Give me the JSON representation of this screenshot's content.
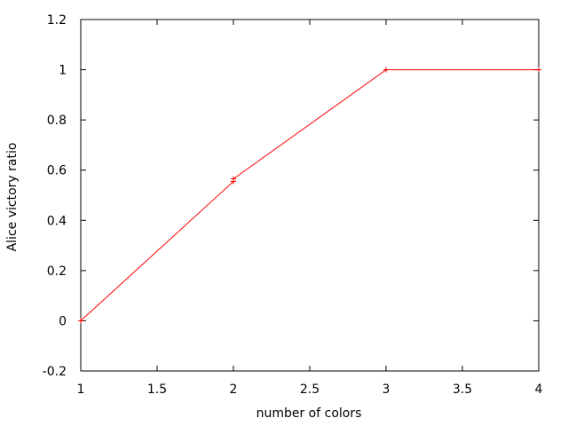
{
  "chart_data": {
    "type": "line",
    "title": "",
    "xlabel": "number of colors",
    "ylabel": "Alice victory ratio",
    "xlim": [
      1,
      4
    ],
    "ylim": [
      -0.2,
      1.2
    ],
    "xticks": [
      1,
      1.5,
      2,
      2.5,
      3,
      3.5,
      4
    ],
    "yticks": [
      -0.2,
      0,
      0.2,
      0.4,
      0.6,
      0.8,
      1,
      1.2
    ],
    "xtick_labels": [
      "1",
      "1.5",
      "2",
      "2.5",
      "3",
      "3.5",
      "4"
    ],
    "ytick_labels": [
      "-0.2",
      "0",
      "0.2",
      "0.4",
      "0.6",
      "0.8",
      "1",
      "1.2"
    ],
    "grid": false,
    "legend": "none",
    "series": [
      {
        "color": "#ff0000",
        "marker": "plus",
        "x": [
          1,
          2,
          2,
          3,
          4
        ],
        "y": [
          0,
          0.555,
          0.565,
          1,
          1
        ]
      }
    ]
  }
}
